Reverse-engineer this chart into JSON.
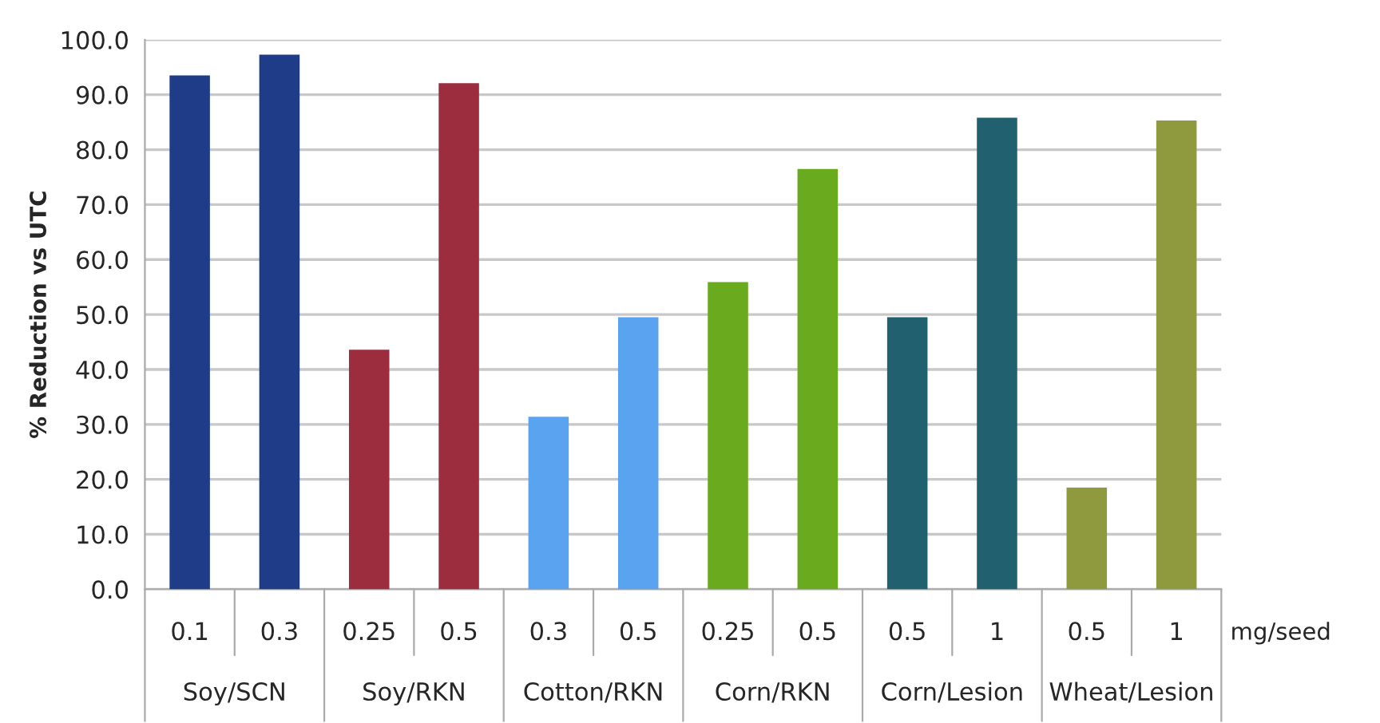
{
  "chart_data": {
    "type": "bar",
    "ylabel": "% Reduction vs UTC",
    "xlabel": "mg/seed",
    "categories": [
      "0.1",
      "0.3",
      "0.25",
      "0.5",
      "0.3",
      "0.5",
      "0.25",
      "0.5",
      "0.5",
      "1",
      "0.5",
      "1"
    ],
    "values": [
      93.5,
      97.3,
      43.6,
      92.1,
      31.4,
      49.5,
      55.9,
      76.5,
      49.5,
      85.8,
      18.5,
      85.3
    ],
    "colors": [
      "#1f3c88",
      "#1f3c88",
      "#9b2d3f",
      "#9b2d3f",
      "#5aa3f0",
      "#5aa3f0",
      "#6aaa1e",
      "#6aaa1e",
      "#21606f",
      "#21606f",
      "#8f9a3e",
      "#8f9a3e"
    ],
    "annotations": [
      "Soy/SCN",
      "Soy/RKN",
      "Cotton/RKN",
      "Corn/RKN",
      "Corn/Lesion",
      "Wheat/Lesion"
    ],
    "ylim": [
      0,
      100
    ],
    "yticks": [
      {
        "value": 0,
        "label": "0.0"
      },
      {
        "value": 10,
        "label": "10.0"
      },
      {
        "value": 20,
        "label": "20.0"
      },
      {
        "value": 30,
        "label": "30.0"
      },
      {
        "value": 40,
        "label": "40.0"
      },
      {
        "value": 50,
        "label": "50.0"
      },
      {
        "value": 60,
        "label": "60.0"
      },
      {
        "value": 70,
        "label": "70.0"
      },
      {
        "value": 80,
        "label": "80.0"
      },
      {
        "value": 90,
        "label": "90.0"
      },
      {
        "value": 100,
        "label": "100.0"
      }
    ],
    "grid": "y"
  }
}
